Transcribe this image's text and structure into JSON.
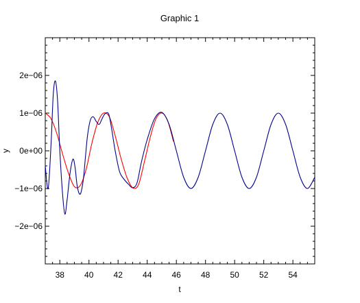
{
  "chart_data": {
    "type": "line",
    "title": "Graphic 1",
    "xlabel": "t",
    "ylabel": "y",
    "xlim": [
      37,
      55.5
    ],
    "ylim": [
      -3e-06,
      3e-06
    ],
    "x_ticks": [
      38,
      40,
      42,
      44,
      46,
      48,
      50,
      52,
      54
    ],
    "x_tick_labels": [
      "38",
      "40",
      "42",
      "44",
      "46",
      "48",
      "50",
      "52",
      "54"
    ],
    "y_ticks": [
      -2e-06,
      -1e-06,
      0,
      1e-06,
      2e-06
    ],
    "y_tick_labels": [
      "−2e−06",
      "−1e−06",
      "0e+00",
      "1e−06",
      "2e−06"
    ],
    "grid": false,
    "series": [
      {
        "color": "#00008b",
        "x": [
          37.0,
          37.2,
          37.4,
          37.55,
          37.7,
          37.85,
          38.0,
          38.2,
          38.35,
          38.5,
          38.7,
          38.9,
          39.05,
          39.2,
          39.4,
          39.6,
          39.75,
          39.9,
          40.1,
          40.3,
          40.5,
          40.7,
          40.9,
          41.1,
          41.35,
          41.55,
          41.8,
          42.1,
          42.4,
          42.7,
          43.0,
          43.3,
          43.6,
          44.0,
          44.5,
          45.0,
          45.5,
          46.0,
          46.5,
          47.0,
          47.5,
          48.0,
          48.5,
          49.0,
          49.5,
          50.0,
          50.5,
          51.0,
          51.5,
          52.0,
          52.5,
          53.0,
          53.5,
          54.0,
          54.5,
          55.0,
          55.5
        ],
        "y": [
          -4e-07,
          -1e-06,
          2e-07,
          1.5e-06,
          1.85e-06,
          1.3e-06,
          0.0,
          -1.2e-06,
          -1.68e-06,
          -1.3e-06,
          -6e-07,
          -2.2e-07,
          -4.5e-07,
          -9.5e-07,
          -1.15e-06,
          -8e-07,
          -2e-07,
          4e-07,
          8.2e-07,
          9e-07,
          7.8e-07,
          7e-07,
          8.5e-07,
          9.8e-07,
          9.8e-07,
          6e-07,
          0.0,
          -5.5e-07,
          -7.5e-07,
          -8.8e-07,
          -9.8e-07,
          -8.5e-07,
          -3e-07,
          3e-07,
          8.5e-07,
          1.02e-06,
          7e-07,
          0.0,
          -7e-07,
          -1e-06,
          -7e-07,
          0.0,
          7e-07,
          1e-06,
          7e-07,
          0.0,
          -7e-07,
          -1e-06,
          -7e-07,
          0.0,
          7e-07,
          1e-06,
          7e-07,
          0.0,
          -7e-07,
          -1e-06,
          -7e-07
        ]
      },
      {
        "color": "#ff0000",
        "x": [
          37.0,
          37.4,
          37.8,
          38.2,
          38.6,
          39.0,
          39.4,
          39.8,
          40.2,
          40.6,
          41.0,
          41.4,
          41.8,
          42.2,
          42.6,
          43.0,
          43.4,
          43.8,
          44.2,
          44.6,
          45.0,
          45.4,
          45.8
        ],
        "y": [
          1e-06,
          8.5e-07,
          4.5e-07,
          -1e-07,
          -6e-07,
          -9.5e-07,
          -9.2e-07,
          -5e-07,
          2e-07,
          7.5e-07,
          1e-06,
          9e-07,
          4e-07,
          -2e-07,
          -7e-07,
          -9.8e-07,
          -9e-07,
          -3e-07,
          3.5e-07,
          8.5e-07,
          1e-06,
          8e-07,
          2.5e-07
        ]
      }
    ]
  }
}
